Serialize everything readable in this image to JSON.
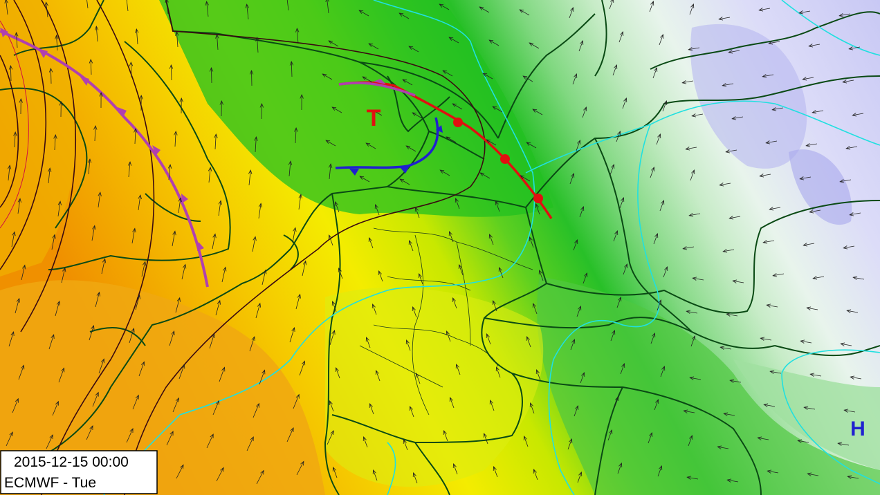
{
  "pressure_labels": {
    "low": "T",
    "high": "H"
  },
  "info": {
    "datetime": "2015-12-15 00:00",
    "model": "ECMWF - Tue"
  }
}
